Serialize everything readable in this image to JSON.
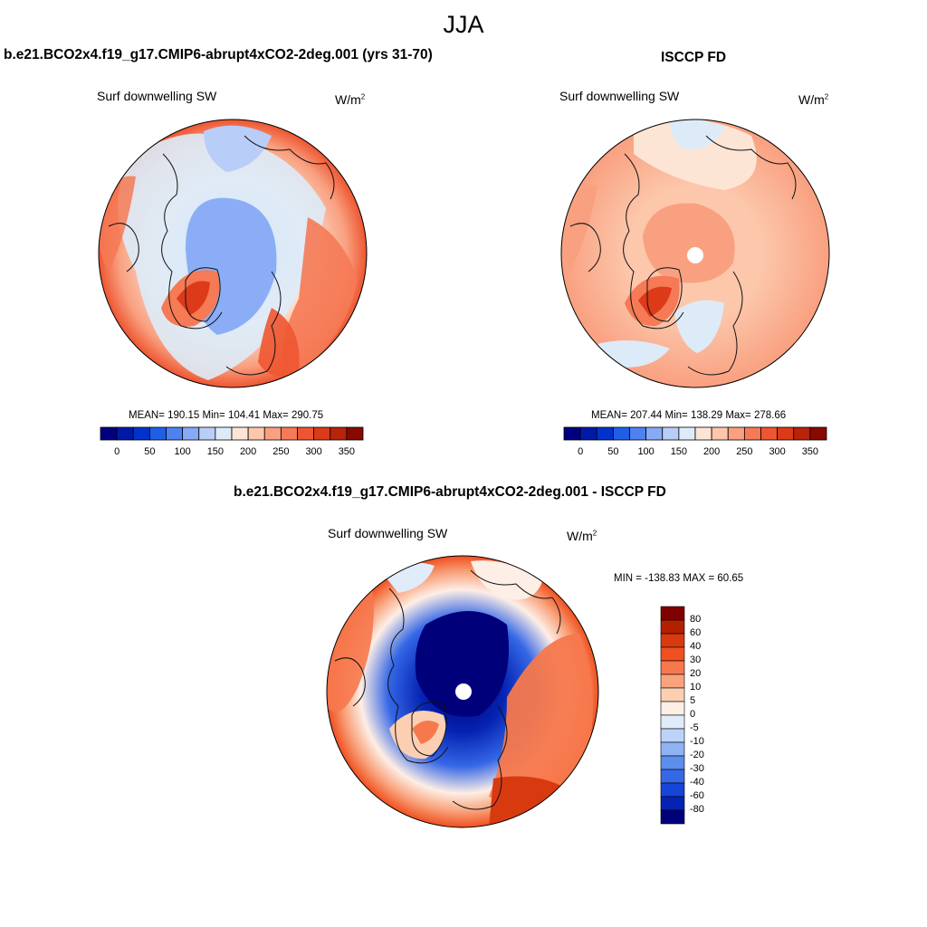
{
  "figure": {
    "season_title": "JJA",
    "panel_model_title": "b.e21.BCO2x4.f19_g17.CMIP6-abrupt4xCO2-2deg.001 (yrs 31-70)",
    "panel_obs_title": "ISCCP FD",
    "panel_diff_title": "b.e21.BCO2x4.f19_g17.CMIP6-abrupt4xCO2-2deg.001 - ISCCP FD",
    "variable_label": "Surf downwelling SW",
    "units_base": "W/m",
    "units_exp": "2"
  },
  "chart_data": [
    {
      "type": "heatmap",
      "projection": "north-polar-stereographic",
      "title": "b.e21.BCO2x4.f19_g17.CMIP6-abrupt4xCO2-2deg.001 (yrs 31-70)",
      "variable": "Surf downwelling SW",
      "units": "W/m2",
      "stats": {
        "mean": 190.15,
        "min": 104.41,
        "max": 290.75
      },
      "stats_text": "MEAN= 190.15  Min= 104.41  Max= 290.75",
      "colorbar": {
        "orientation": "horizontal",
        "tick_labels": [
          "0",
          "50",
          "100",
          "150",
          "200",
          "250",
          "300",
          "350"
        ],
        "colors": [
          "#00007f",
          "#0019a8",
          "#0033cc",
          "#1f5fe6",
          "#4d82f0",
          "#86aaf5",
          "#b8cdf7",
          "#ddebf8",
          "#fde5d6",
          "#fcc7ab",
          "#f9a080",
          "#f57a55",
          "#ee5631",
          "#dc3a18",
          "#b8230a",
          "#870a00"
        ]
      }
    },
    {
      "type": "heatmap",
      "projection": "north-polar-stereographic",
      "title": "ISCCP FD",
      "variable": "Surf downwelling SW",
      "units": "W/m2",
      "stats": {
        "mean": 207.44,
        "min": 138.29,
        "max": 278.66
      },
      "stats_text": "MEAN= 207.44  Min= 138.29  Max= 278.66",
      "colorbar": {
        "orientation": "horizontal",
        "tick_labels": [
          "0",
          "50",
          "100",
          "150",
          "200",
          "250",
          "300",
          "350"
        ],
        "colors": [
          "#00007f",
          "#0019a8",
          "#0033cc",
          "#1f5fe6",
          "#4d82f0",
          "#86aaf5",
          "#b8cdf7",
          "#ddebf8",
          "#fde5d6",
          "#fcc7ab",
          "#f9a080",
          "#f57a55",
          "#ee5631",
          "#dc3a18",
          "#b8230a",
          "#870a00"
        ]
      }
    },
    {
      "type": "heatmap",
      "projection": "north-polar-stereographic",
      "title": "b.e21.BCO2x4.f19_g17.CMIP6-abrupt4xCO2-2deg.001 - ISCCP FD",
      "variable": "Surf downwelling SW",
      "units": "W/m2",
      "stats": {
        "min": -138.83,
        "max": 60.65
      },
      "stats_text": "MIN = -138.83 MAX =  60.65",
      "colorbar": {
        "orientation": "vertical",
        "tick_labels": [
          "80",
          "60",
          "40",
          "30",
          "20",
          "10",
          "5",
          "0",
          "-5",
          "-10",
          "-20",
          "-30",
          "-40",
          "-60",
          "-80"
        ],
        "colors": [
          "#7f0000",
          "#b22000",
          "#d83a10",
          "#f0501f",
          "#f7784c",
          "#f9a37c",
          "#fccfb3",
          "#fdeee6",
          "#e1ecfb",
          "#bcd2f8",
          "#8fb2f3",
          "#5d8ded",
          "#3567e6",
          "#1745d8",
          "#0523b2",
          "#00007a"
        ]
      }
    }
  ]
}
